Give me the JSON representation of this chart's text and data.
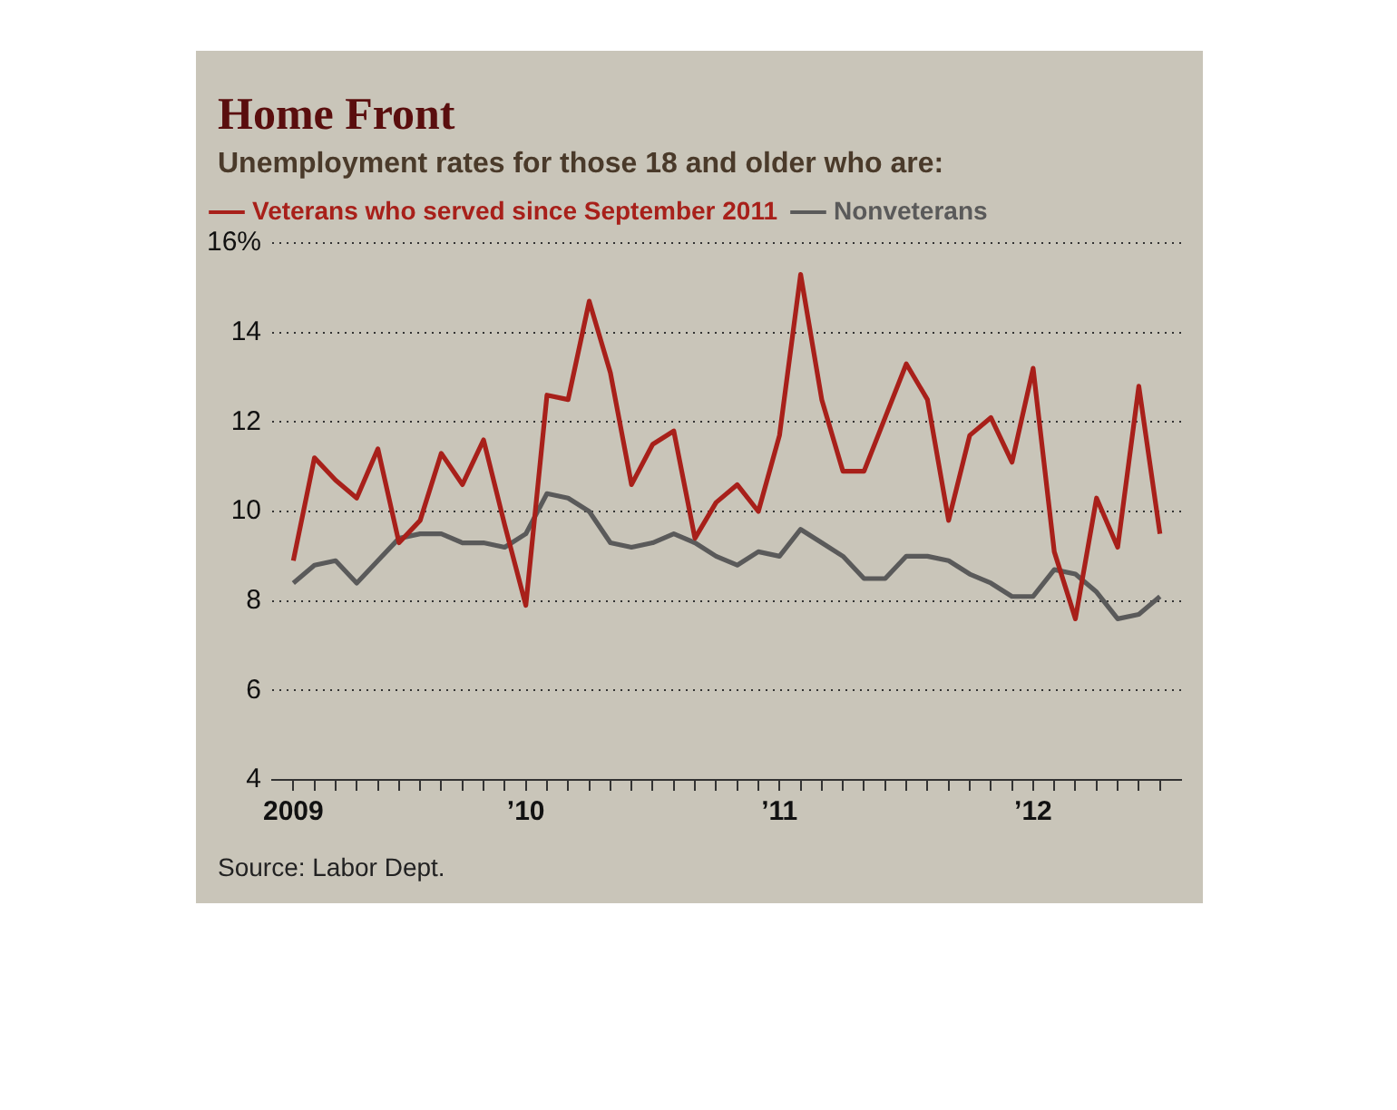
{
  "chart_data": {
    "type": "line",
    "title": "Home Front",
    "subtitle": "Unemployment rates for those 18 and older who are:",
    "annotations": [
      "Source: Labor Dept."
    ],
    "x": [
      "2009-02",
      "2009-03",
      "2009-04",
      "2009-05",
      "2009-06",
      "2009-07",
      "2009-08",
      "2009-09",
      "2009-10",
      "2009-11",
      "2009-12",
      "2010-01",
      "2010-02",
      "2010-03",
      "2010-04",
      "2010-05",
      "2010-06",
      "2010-07",
      "2010-08",
      "2010-09",
      "2010-10",
      "2010-11",
      "2010-12",
      "2011-01",
      "2011-02",
      "2011-03",
      "2011-04",
      "2011-05",
      "2011-06",
      "2011-07",
      "2011-08",
      "2011-09",
      "2011-10",
      "2011-11",
      "2011-12",
      "2012-01",
      "2012-02",
      "2012-03",
      "2012-04",
      "2012-05",
      "2012-06",
      "2012-07"
    ],
    "series": [
      {
        "name": "Veterans who served since September 2011",
        "color": "#a8201a",
        "values": [
          8.9,
          11.2,
          10.7,
          10.3,
          11.4,
          9.3,
          9.8,
          11.3,
          10.6,
          11.6,
          9.7,
          7.9,
          12.6,
          12.5,
          14.7,
          13.1,
          10.6,
          11.5,
          11.8,
          9.4,
          10.2,
          10.6,
          10.0,
          11.7,
          15.3,
          12.5,
          10.9,
          10.9,
          12.1,
          13.3,
          12.5,
          9.8,
          11.7,
          12.1,
          11.1,
          13.2,
          9.1,
          7.6,
          10.3,
          9.2,
          12.8,
          9.5
        ]
      },
      {
        "name": "Nonveterans",
        "color": "#5a5a5a",
        "values": [
          8.4,
          8.8,
          8.9,
          8.4,
          8.9,
          9.4,
          9.5,
          9.5,
          9.3,
          9.3,
          9.2,
          9.5,
          10.4,
          10.3,
          10.0,
          9.3,
          9.2,
          9.3,
          9.5,
          9.3,
          9.0,
          8.8,
          9.1,
          9.0,
          9.6,
          9.3,
          9.0,
          8.5,
          8.5,
          9.0,
          9.0,
          8.9,
          8.6,
          8.4,
          8.1,
          8.1,
          8.7,
          8.6,
          8.2,
          7.6,
          7.7,
          8.1
        ]
      }
    ],
    "xlim": [
      "2009-01",
      "2012-08"
    ],
    "xticks": [
      {
        "value": "2009-02",
        "label": "2009"
      },
      {
        "value": "2009-03",
        "label": null
      },
      {
        "value": "2009-04",
        "label": null
      },
      {
        "value": "2009-05",
        "label": null
      },
      {
        "value": "2009-06",
        "label": null
      },
      {
        "value": "2009-07",
        "label": null
      },
      {
        "value": "2009-08",
        "label": null
      },
      {
        "value": "2009-09",
        "label": null
      },
      {
        "value": "2009-10",
        "label": null
      },
      {
        "value": "2009-11",
        "label": null
      },
      {
        "value": "2009-12",
        "label": null
      },
      {
        "value": "2010-01",
        "label": "’10"
      },
      {
        "value": "2010-02",
        "label": null
      },
      {
        "value": "2010-03",
        "label": null
      },
      {
        "value": "2010-04",
        "label": null
      },
      {
        "value": "2010-05",
        "label": null
      },
      {
        "value": "2010-06",
        "label": null
      },
      {
        "value": "2010-07",
        "label": null
      },
      {
        "value": "2010-08",
        "label": null
      },
      {
        "value": "2010-09",
        "label": null
      },
      {
        "value": "2010-10",
        "label": null
      },
      {
        "value": "2010-11",
        "label": null
      },
      {
        "value": "2010-12",
        "label": null
      },
      {
        "value": "2011-01",
        "label": "’11"
      },
      {
        "value": "2011-02",
        "label": null
      },
      {
        "value": "2011-03",
        "label": null
      },
      {
        "value": "2011-04",
        "label": null
      },
      {
        "value": "2011-05",
        "label": null
      },
      {
        "value": "2011-06",
        "label": null
      },
      {
        "value": "2011-07",
        "label": null
      },
      {
        "value": "2011-08",
        "label": null
      },
      {
        "value": "2011-09",
        "label": null
      },
      {
        "value": "2011-10",
        "label": null
      },
      {
        "value": "2011-11",
        "label": null
      },
      {
        "value": "2011-12",
        "label": null
      },
      {
        "value": "2012-01",
        "label": "’12"
      },
      {
        "value": "2012-02",
        "label": null
      },
      {
        "value": "2012-03",
        "label": null
      },
      {
        "value": "2012-04",
        "label": null
      },
      {
        "value": "2012-05",
        "label": null
      },
      {
        "value": "2012-06",
        "label": null
      },
      {
        "value": "2012-07",
        "label": null
      }
    ],
    "ylim": [
      4,
      16
    ],
    "yticks": [
      4,
      6,
      8,
      10,
      12,
      14,
      {
        "value": 16,
        "label": "16%"
      }
    ],
    "grid": "y",
    "legend": "top left",
    "marker": "none"
  }
}
